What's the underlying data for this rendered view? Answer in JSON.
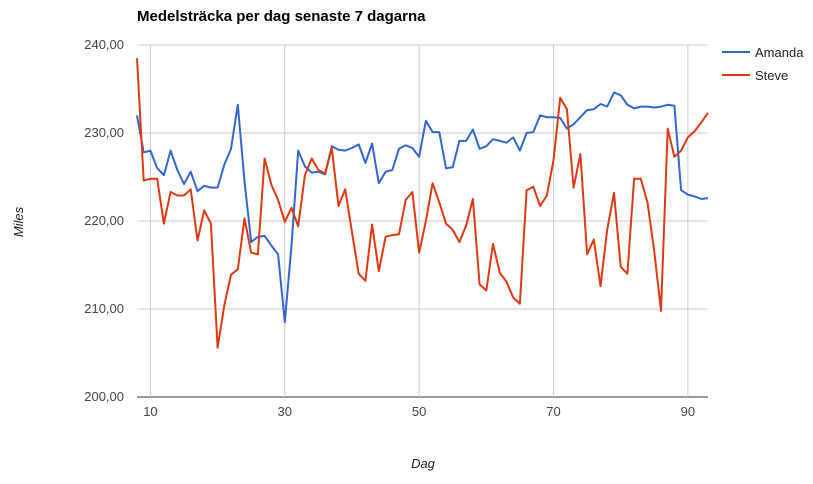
{
  "chart_data": {
    "type": "line",
    "title": "Medelsträcka per dag senaste 7 dagarna",
    "xlabel": "Dag",
    "ylabel": "Miles",
    "xlim": [
      8,
      93
    ],
    "ylim": [
      200,
      240
    ],
    "x_ticks": [
      10,
      30,
      50,
      70,
      90
    ],
    "x_tick_labels": [
      "10",
      "30",
      "50",
      "70",
      "90"
    ],
    "y_ticks": [
      200,
      210,
      220,
      230,
      240
    ],
    "y_tick_labels": [
      "200,00",
      "210,00",
      "220,00",
      "230,00",
      "240,00"
    ],
    "grid": true,
    "legend": "right",
    "x": [
      8,
      9,
      10,
      11,
      12,
      13,
      14,
      15,
      16,
      17,
      18,
      19,
      20,
      21,
      22,
      23,
      24,
      25,
      26,
      27,
      28,
      29,
      30,
      31,
      32,
      33,
      34,
      35,
      36,
      37,
      38,
      39,
      40,
      41,
      42,
      43,
      44,
      45,
      46,
      47,
      48,
      49,
      50,
      51,
      52,
      53,
      54,
      55,
      56,
      57,
      58,
      59,
      60,
      61,
      62,
      63,
      64,
      65,
      66,
      67,
      68,
      69,
      70,
      71,
      72,
      73,
      74,
      75,
      76,
      77,
      78,
      79,
      80,
      81,
      82,
      83,
      84,
      85,
      86,
      87,
      88,
      89,
      90,
      91,
      92,
      93
    ],
    "series": [
      {
        "name": "Amanda",
        "color": "#3366cc",
        "values": [
          232.0,
          227.8,
          228.0,
          226.0,
          225.2,
          228.0,
          225.8,
          224.2,
          225.6,
          223.4,
          224.0,
          223.8,
          223.8,
          226.4,
          228.2,
          233.2,
          224.5,
          217.6,
          218.2,
          218.3,
          217.2,
          216.2,
          208.5,
          217.2,
          228.0,
          226.2,
          225.5,
          225.6,
          225.3,
          228.5,
          228.1,
          228.0,
          228.3,
          228.7,
          226.6,
          228.8,
          224.3,
          225.6,
          225.8,
          228.2,
          228.6,
          228.3,
          227.3,
          231.4,
          230.1,
          230.1,
          226.0,
          226.1,
          229.1,
          229.1,
          230.4,
          228.2,
          228.5,
          229.3,
          229.1,
          228.9,
          229.5,
          228.0,
          230.0,
          230.1,
          232.0,
          231.8,
          231.8,
          231.7,
          230.5,
          231.0,
          231.8,
          232.6,
          232.7,
          233.3,
          233.0,
          234.6,
          234.3,
          233.2,
          232.8,
          233.0,
          233.0,
          232.9,
          233.0,
          233.2,
          233.1,
          223.5,
          223.0,
          222.8,
          222.5,
          222.6
        ]
      },
      {
        "name": "Steve",
        "color": "#dc3912",
        "values": [
          238.5,
          224.6,
          224.8,
          224.8,
          219.7,
          223.3,
          222.9,
          222.9,
          223.6,
          217.8,
          221.2,
          219.7,
          205.6,
          210.4,
          213.9,
          214.5,
          220.3,
          216.4,
          216.2,
          227.1,
          224.1,
          222.4,
          219.9,
          221.5,
          219.4,
          225.2,
          227.1,
          225.8,
          225.4,
          228.3,
          221.7,
          223.6,
          218.7,
          214.0,
          213.2,
          219.6,
          214.3,
          218.2,
          218.4,
          218.5,
          222.4,
          223.3,
          216.4,
          220.0,
          224.3,
          222.1,
          219.7,
          219.0,
          217.6,
          219.5,
          222.5,
          212.8,
          212.1,
          217.4,
          214.1,
          213.1,
          211.3,
          210.6,
          223.5,
          223.9,
          221.7,
          222.9,
          226.9,
          234.0,
          232.7,
          223.8,
          227.6,
          216.2,
          217.9,
          212.6,
          219.0,
          223.2,
          214.8,
          214.0,
          224.8,
          224.8,
          222.1,
          216.5,
          209.8,
          230.5,
          227.3,
          228.0,
          229.5,
          230.2,
          231.2,
          232.3
        ]
      }
    ]
  }
}
